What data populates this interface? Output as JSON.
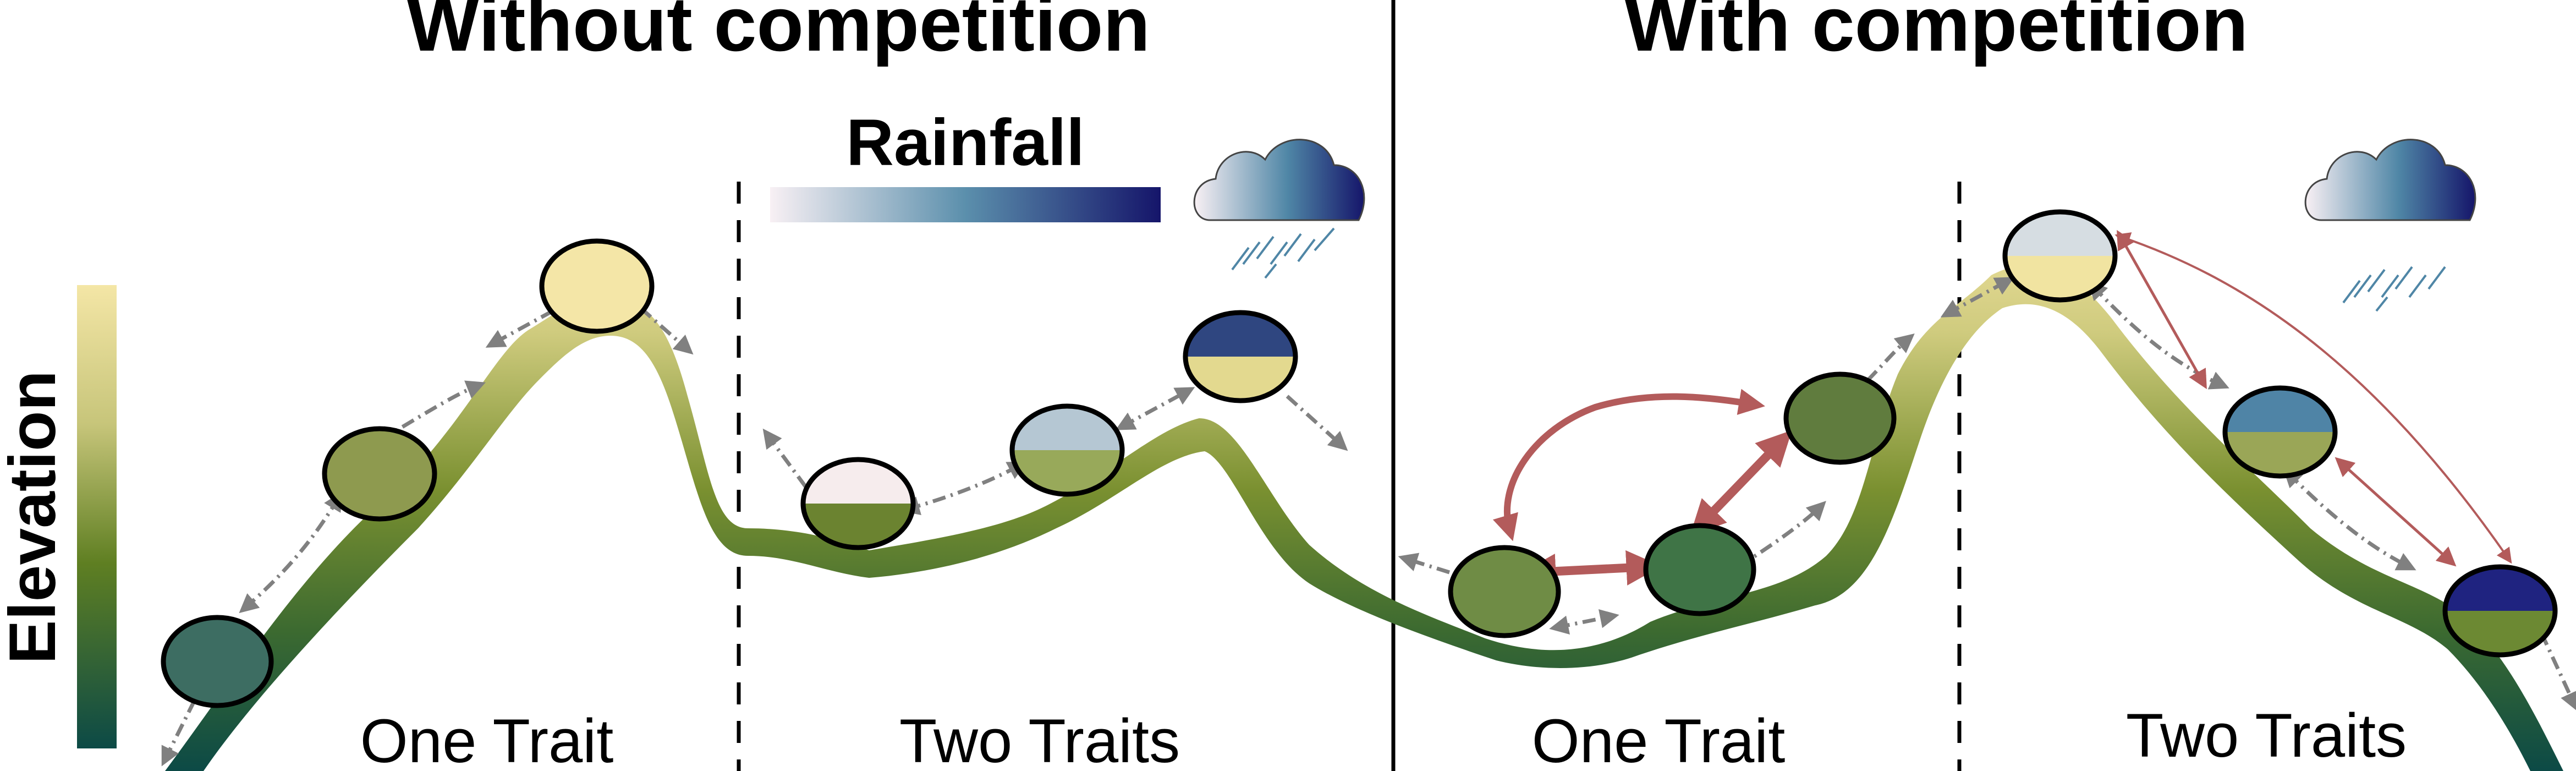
{
  "panels": {
    "left_title": "Without competition",
    "right_title": "With competition"
  },
  "legend": {
    "rainfall_label": "Rainfall",
    "elevation_label": "Elevation",
    "cloud_icon": "rain-cloud-icon"
  },
  "sections": {
    "left_one": "One Trait",
    "left_two": "Two Traits",
    "right_one": "One Trait",
    "right_two": "Two Traits"
  },
  "colors": {
    "elevation_high": "#f3e3a0",
    "elevation_mid": "#5e7f22",
    "elevation_low": "#0f4a44",
    "rain_low": "#f7eef2",
    "rain_mid": "#4f86a6",
    "rain_high": "#1a1a6b",
    "competition_arrow": "#b35b5b",
    "dispersal_arrow": "#808080"
  }
}
